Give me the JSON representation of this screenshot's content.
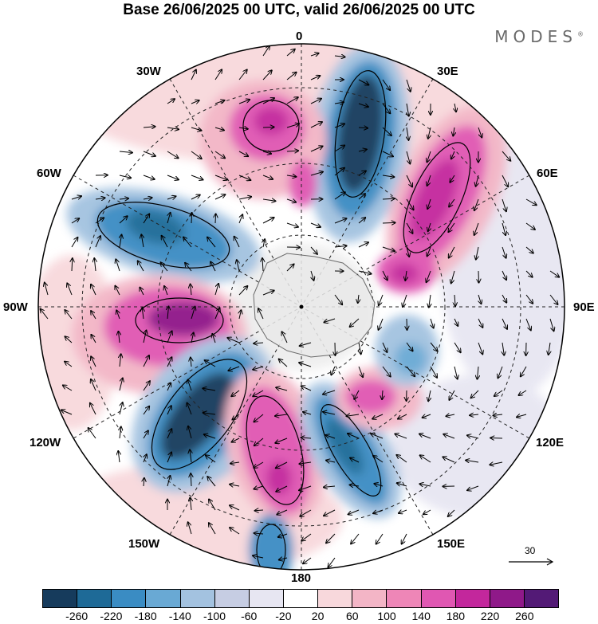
{
  "header": {
    "title": "Base 26/06/2025 00 UTC, valid 26/06/2025 00 UTC",
    "brand": "MODES"
  },
  "map": {
    "projection": "south-polar-stereographic",
    "longitude_labels": {
      "n": "0",
      "nne": "30E",
      "ene": "60E",
      "e": "90E",
      "ese": "120E",
      "sse": "150E",
      "s": "180",
      "ssw": "150W",
      "wsw": "120W",
      "w": "90W",
      "wnw": "60W",
      "nnw": "30W"
    },
    "features": [
      "shaded anomaly field",
      "wind vectors",
      "contours",
      "coastlines",
      "graticule"
    ]
  },
  "reference_vector": {
    "label": "30"
  },
  "colorbar": {
    "colors": [
      "#163b5c",
      "#1e6a97",
      "#3a8cc3",
      "#69a9d4",
      "#a3c2e0",
      "#c6cde3",
      "#e7e6f2",
      "#ffffff",
      "#f8d8dc",
      "#f3b5c6",
      "#ee86b7",
      "#e057b2",
      "#c3279c",
      "#8f1989",
      "#531a76"
    ],
    "tick_labels": [
      "-260",
      "-220",
      "-180",
      "-140",
      "-100",
      "-60",
      "-20",
      "20",
      "60",
      "100",
      "140",
      "180",
      "220",
      "260"
    ]
  }
}
